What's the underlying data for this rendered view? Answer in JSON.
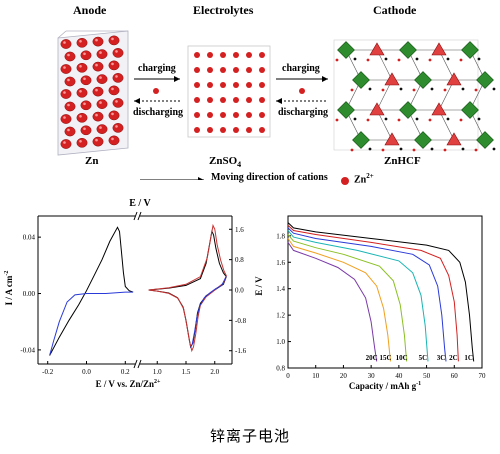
{
  "schematic": {
    "anode_title": "Anode",
    "electrolytes_title": "Electrolytes",
    "cathode_title": "Cathode",
    "anode_label": "Zn",
    "electrolyte_label_main": "ZnSO",
    "electrolyte_label_sub": "4",
    "cathode_label": "ZnHCF",
    "charging_label": "charging",
    "discharging_label": "discharging",
    "legend_text": "Moving direction of cations",
    "legend_ion_main": "Zn",
    "legend_ion_sup": "2+"
  },
  "colors": {
    "ion_red": "#d42020",
    "frame_green": "#2e8b2e",
    "cv_black": "#000000",
    "cv_red": "#c83232",
    "cv_blue": "#2a3ad8"
  },
  "caption": "锌离子电池",
  "chart_data": [
    {
      "type": "line",
      "title": "",
      "top_axis_label": "E  /  V",
      "xlabel_main": "E  /  V vs. Zn/Zn",
      "xlabel_sup": "2+",
      "ylabel": "I  /  A cm",
      "ylabel_sup": "-2",
      "left_panel": {
        "xlim": [
          -0.25,
          0.25
        ],
        "xticks": [
          "-0.2",
          "0.0",
          "0.2"
        ],
        "ylim": [
          -0.05,
          0.055
        ],
        "yticks": [
          "-0.04",
          "0.00",
          "0.04"
        ],
        "series": [
          {
            "color": "#000000",
            "points": [
              [
                -0.19,
                -0.044
              ],
              [
                -0.14,
                -0.031
              ],
              [
                -0.09,
                -0.019
              ],
              [
                -0.04,
                -0.008
              ],
              [
                0.0,
                0.002
              ],
              [
                0.04,
                0.013
              ],
              [
                0.08,
                0.024
              ],
              [
                0.12,
                0.037
              ],
              [
                0.16,
                0.047
              ],
              [
                0.17,
                0.044
              ],
              [
                0.18,
                0.03
              ],
              [
                0.19,
                0.015
              ],
              [
                0.2,
                0.005
              ],
              [
                0.22,
                0.002
              ],
              [
                0.24,
                0.001
              ]
            ]
          },
          {
            "color": "#2a3ad8",
            "points": [
              [
                0.24,
                0.001
              ],
              [
                0.2,
                0.001
              ],
              [
                0.1,
                0.0
              ],
              [
                0.0,
                0.0
              ],
              [
                -0.06,
                -0.001
              ],
              [
                -0.1,
                -0.006
              ],
              [
                -0.14,
                -0.02
              ],
              [
                -0.17,
                -0.034
              ],
              [
                -0.19,
                -0.044
              ]
            ]
          }
        ]
      },
      "right_panel": {
        "xlim": [
          0.7,
          2.3
        ],
        "xticks": [
          "1.0",
          "1.5",
          "2.0"
        ],
        "ylim": [
          -1.95,
          1.95
        ],
        "yticks": [
          "-1.6",
          "-0.8",
          "0.0",
          "0.8",
          "1.6"
        ],
        "series": [
          {
            "color": "#000000",
            "points": [
              [
                0.85,
                0.0
              ],
              [
                1.2,
                0.05
              ],
              [
                1.5,
                0.12
              ],
              [
                1.75,
                0.3
              ],
              [
                1.85,
                0.7
              ],
              [
                1.92,
                1.3
              ],
              [
                1.95,
                1.55
              ],
              [
                1.98,
                1.45
              ],
              [
                2.02,
                1.1
              ],
              [
                2.08,
                0.7
              ],
              [
                2.15,
                0.45
              ],
              [
                2.2,
                0.35
              ],
              [
                2.15,
                0.15
              ],
              [
                2.05,
                0.05
              ],
              [
                1.95,
                -0.05
              ],
              [
                1.85,
                -0.15
              ],
              [
                1.75,
                -0.35
              ],
              [
                1.7,
                -0.6
              ],
              [
                1.66,
                -1.05
              ],
              [
                1.62,
                -1.4
              ],
              [
                1.58,
                -1.5
              ],
              [
                1.55,
                -1.25
              ],
              [
                1.5,
                -0.8
              ],
              [
                1.45,
                -0.45
              ],
              [
                1.35,
                -0.2
              ],
              [
                1.2,
                -0.08
              ],
              [
                1.0,
                -0.03
              ],
              [
                0.85,
                0.0
              ]
            ]
          },
          {
            "color": "#c83232",
            "points": [
              [
                0.85,
                0.0
              ],
              [
                1.2,
                0.06
              ],
              [
                1.5,
                0.15
              ],
              [
                1.75,
                0.35
              ],
              [
                1.87,
                0.85
              ],
              [
                1.94,
                1.45
              ],
              [
                1.97,
                1.7
              ],
              [
                2.0,
                1.6
              ],
              [
                2.04,
                1.2
              ],
              [
                2.1,
                0.8
              ],
              [
                2.16,
                0.5
              ],
              [
                2.2,
                0.38
              ],
              [
                2.15,
                0.18
              ],
              [
                2.05,
                0.06
              ],
              [
                1.95,
                -0.06
              ],
              [
                1.85,
                -0.18
              ],
              [
                1.75,
                -0.4
              ],
              [
                1.71,
                -0.7
              ],
              [
                1.67,
                -1.15
              ],
              [
                1.63,
                -1.5
              ],
              [
                1.6,
                -1.6
              ],
              [
                1.56,
                -1.35
              ],
              [
                1.51,
                -0.9
              ],
              [
                1.46,
                -0.5
              ],
              [
                1.36,
                -0.22
              ],
              [
                1.2,
                -0.09
              ],
              [
                1.0,
                -0.03
              ],
              [
                0.85,
                0.0
              ]
            ]
          },
          {
            "color": "#2a3ad8",
            "points": [
              [
                2.2,
                0.36
              ],
              [
                2.12,
                0.12
              ],
              [
                2.02,
                0.04
              ],
              [
                1.92,
                -0.07
              ],
              [
                1.82,
                -0.2
              ],
              [
                1.74,
                -0.42
              ],
              [
                1.69,
                -0.72
              ],
              [
                1.65,
                -1.1
              ],
              [
                1.61,
                -1.42
              ],
              [
                1.58,
                -1.52
              ]
            ]
          }
        ]
      }
    },
    {
      "type": "line",
      "title": "",
      "xlabel": "Capacity  /  mAh g",
      "xlabel_sup": "-1",
      "ylabel": "E  /  V",
      "xlim": [
        0,
        70
      ],
      "ylim": [
        0.8,
        1.95
      ],
      "xticks": [
        0,
        10,
        20,
        30,
        40,
        50,
        60,
        70
      ],
      "yticks": [
        0.8,
        1.0,
        1.2,
        1.4,
        1.6,
        1.8
      ],
      "series": [
        {
          "name": "1C",
          "color": "#000000",
          "points": [
            [
              0,
              1.9
            ],
            [
              2,
              1.86
            ],
            [
              10,
              1.83
            ],
            [
              30,
              1.78
            ],
            [
              50,
              1.73
            ],
            [
              58,
              1.69
            ],
            [
              62,
              1.6
            ],
            [
              64,
              1.45
            ],
            [
              65.5,
              1.2
            ],
            [
              66.5,
              0.95
            ],
            [
              67,
              0.85
            ]
          ]
        },
        {
          "name": "2C",
          "color": "#d42020",
          "points": [
            [
              0,
              1.88
            ],
            [
              2,
              1.84
            ],
            [
              10,
              1.81
            ],
            [
              30,
              1.75
            ],
            [
              48,
              1.69
            ],
            [
              55,
              1.63
            ],
            [
              58,
              1.5
            ],
            [
              60,
              1.3
            ],
            [
              61,
              1.05
            ],
            [
              61.5,
              0.85
            ]
          ]
        },
        {
          "name": "3C",
          "color": "#2a3ad8",
          "points": [
            [
              0,
              1.86
            ],
            [
              2,
              1.82
            ],
            [
              10,
              1.78
            ],
            [
              30,
              1.72
            ],
            [
              45,
              1.66
            ],
            [
              51,
              1.58
            ],
            [
              54,
              1.42
            ],
            [
              55.5,
              1.2
            ],
            [
              56.5,
              0.95
            ],
            [
              57,
              0.85
            ]
          ]
        },
        {
          "name": "5C",
          "color": "#19b5b5",
          "points": [
            [
              0,
              1.84
            ],
            [
              2,
              1.79
            ],
            [
              10,
              1.75
            ],
            [
              25,
              1.69
            ],
            [
              40,
              1.61
            ],
            [
              45,
              1.52
            ],
            [
              48,
              1.35
            ],
            [
              49.5,
              1.12
            ],
            [
              50.5,
              0.85
            ]
          ]
        },
        {
          "name": "10C",
          "color": "#8bc024",
          "points": [
            [
              0,
              1.81
            ],
            [
              2,
              1.76
            ],
            [
              10,
              1.71
            ],
            [
              20,
              1.66
            ],
            [
              33,
              1.57
            ],
            [
              38,
              1.46
            ],
            [
              40.5,
              1.28
            ],
            [
              42,
              1.05
            ],
            [
              42.8,
              0.85
            ]
          ]
        },
        {
          "name": "15C",
          "color": "#f0a020",
          "points": [
            [
              0,
              1.78
            ],
            [
              2,
              1.72
            ],
            [
              10,
              1.67
            ],
            [
              20,
              1.6
            ],
            [
              28,
              1.52
            ],
            [
              32,
              1.42
            ],
            [
              34.5,
              1.25
            ],
            [
              36,
              1.05
            ],
            [
              37,
              0.85
            ]
          ]
        },
        {
          "name": "20C",
          "color": "#7a3aa8",
          "points": [
            [
              0,
              1.75
            ],
            [
              2,
              1.69
            ],
            [
              10,
              1.63
            ],
            [
              18,
              1.56
            ],
            [
              24,
              1.47
            ],
            [
              28,
              1.33
            ],
            [
              30,
              1.15
            ],
            [
              31.3,
              0.95
            ],
            [
              32,
              0.85
            ]
          ]
        }
      ]
    }
  ]
}
